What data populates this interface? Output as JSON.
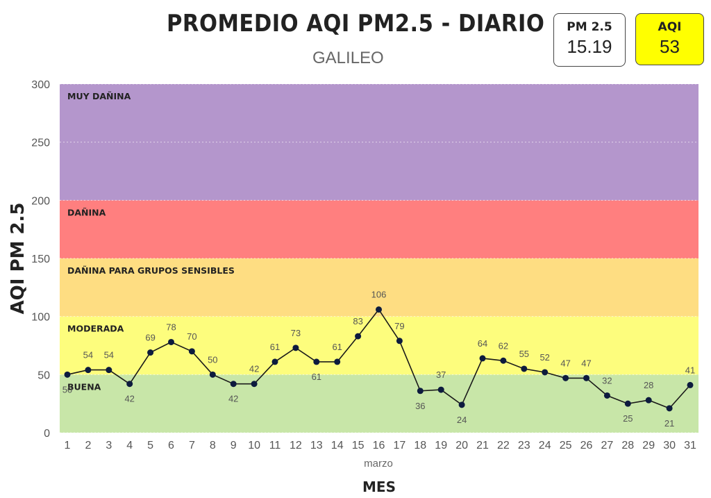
{
  "header": {
    "title": "PROMEDIO AQI PM2.5 - DIARIO",
    "subtitle": "GALILEO"
  },
  "cards": {
    "pm": {
      "label": "PM 2.5",
      "value": "15.19",
      "color": "#ffffff"
    },
    "aqi": {
      "label": "AQI",
      "value": "53",
      "color": "#ffff00"
    }
  },
  "chart_data": {
    "type": "line",
    "title": "PROMEDIO AQI PM2.5 - DIARIO",
    "subtitle": "GALILEO",
    "xlabel": "MES",
    "x_sublabel": "marzo",
    "ylabel": "AQI PM 2.5",
    "ylim": [
      0,
      300
    ],
    "yticks": [
      0,
      50,
      100,
      150,
      200,
      250,
      300
    ],
    "x": [
      1,
      2,
      3,
      4,
      5,
      6,
      7,
      8,
      9,
      10,
      11,
      12,
      13,
      14,
      15,
      16,
      17,
      18,
      19,
      20,
      21,
      22,
      23,
      24,
      25,
      26,
      27,
      28,
      29,
      30,
      31
    ],
    "values": [
      50,
      54,
      54,
      42,
      69,
      78,
      70,
      50,
      42,
      42,
      61,
      73,
      61,
      61,
      83,
      106,
      79,
      36,
      37,
      24,
      64,
      62,
      55,
      52,
      47,
      47,
      32,
      25,
      28,
      21,
      41
    ],
    "label_pos": [
      "b",
      "a",
      "a",
      "b",
      "a",
      "a",
      "a",
      "a",
      "b",
      "a",
      "a",
      "a",
      "b",
      "a",
      "a",
      "a",
      "a",
      "b",
      "a",
      "b",
      "a",
      "a",
      "a",
      "a",
      "a",
      "a",
      "a",
      "b",
      "a",
      "b",
      "a"
    ],
    "line_color": "#1a1a1a",
    "marker_color": "#0d1b3e",
    "bands": [
      {
        "name": "BUENA",
        "from": 0,
        "to": 50,
        "color": "#c8e6a8"
      },
      {
        "name": "MODERADA",
        "from": 50,
        "to": 100,
        "color": "#fdfd7d"
      },
      {
        "name": "DAÑINA PARA GRUPOS SENSIBLES",
        "from": 100,
        "to": 150,
        "color": "#fedd82"
      },
      {
        "name": "DAÑINA",
        "from": 150,
        "to": 200,
        "color": "#ff7f7f"
      },
      {
        "name": "MUY DAÑINA",
        "from": 200,
        "to": 300,
        "color": "#b496cc"
      }
    ],
    "grid": true
  }
}
